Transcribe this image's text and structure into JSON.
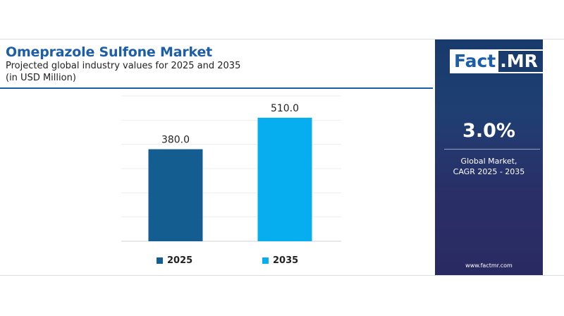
{
  "header": {
    "title": "Omeprazole Sulfone Market",
    "subtitle_line1": "Projected global industry values for 2025 and 2035",
    "subtitle_line2": "(in USD Million)"
  },
  "chart_data": {
    "type": "bar",
    "categories": [
      "2025",
      "2035"
    ],
    "values": [
      380.0,
      510.0
    ],
    "data_labels": [
      "380.0",
      "510.0"
    ],
    "colors": [
      "#135d90",
      "#06aef0"
    ],
    "ylim": [
      0,
      600
    ],
    "grid": true,
    "legend": "bottom"
  },
  "legend": {
    "items": [
      {
        "label": "2025",
        "color": "#135d90"
      },
      {
        "label": "2035",
        "color": "#06aef0"
      }
    ]
  },
  "panel": {
    "logo_left": "Fact",
    "logo_right": ".MR",
    "cagr_value": "3.0%",
    "cagr_label_line1": "Global Market,",
    "cagr_label_line2": "CAGR 2025 - 2035",
    "website": "www.factmr.com"
  }
}
